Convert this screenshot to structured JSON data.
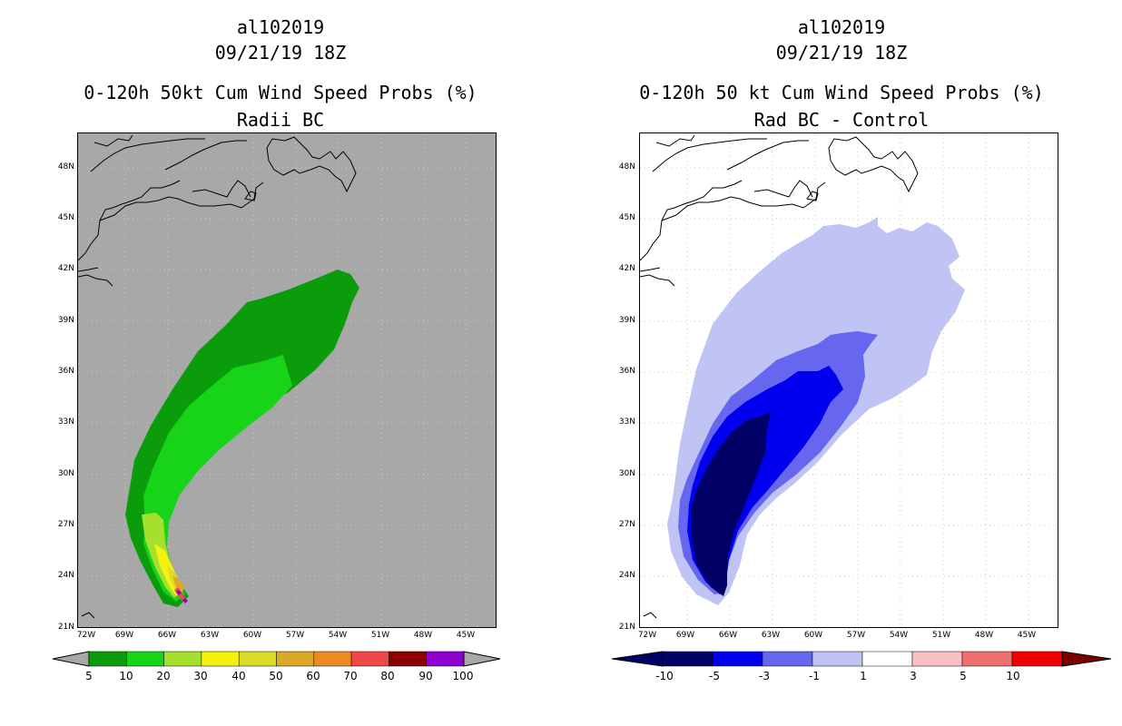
{
  "left": {
    "title_storm": "al102019",
    "title_time": "09/21/19 18Z",
    "title_product": "0-120h 50kt Cum Wind Speed Probs (%)",
    "title_sub": "Radii BC",
    "lat_labels": [
      "48N",
      "45N",
      "42N",
      "39N",
      "36N",
      "33N",
      "30N",
      "27N",
      "24N",
      "21N"
    ],
    "lon_labels": [
      "72W",
      "69W",
      "66W",
      "63W",
      "60W",
      "57W",
      "54W",
      "51W",
      "48W",
      "45W"
    ],
    "colorbar": {
      "labels": [
        "5",
        "10",
        "20",
        "30",
        "40",
        "50",
        "60",
        "70",
        "80",
        "90",
        "100"
      ],
      "colors": [
        "#0a9c0a",
        "#18d418",
        "#a6e02e",
        "#f2f20e",
        "#dcdc28",
        "#dca828",
        "#ee8a22",
        "#f04848",
        "#8c0000",
        "#8e00d0"
      ]
    }
  },
  "right": {
    "title_storm": "al102019",
    "title_time": "09/21/19 18Z",
    "title_product": "0-120h 50 kt Cum Wind Speed Probs (%)",
    "title_sub": "Rad BC - Control",
    "lat_labels": [
      "48N",
      "45N",
      "42N",
      "39N",
      "36N",
      "33N",
      "30N",
      "27N",
      "24N",
      "21N"
    ],
    "lon_labels": [
      "72W",
      "69W",
      "66W",
      "63W",
      "60W",
      "57W",
      "54W",
      "51W",
      "48W",
      "45W"
    ],
    "colorbar": {
      "labels": [
        "-10",
        "-5",
        "-3",
        "-1",
        "1",
        "3",
        "5",
        "10"
      ],
      "colors": [
        "#000066",
        "#0000ee",
        "#6666ee",
        "#c0c4f4",
        "#ffffff",
        "#f8c0c0",
        "#f07070",
        "#f00000"
      ],
      "end_low": "#000066",
      "end_high": "#7a0000"
    }
  },
  "colors": {
    "land_outline": "#000000",
    "left_background": "#a8a8a8",
    "grid": "#c8c8c8",
    "arrow_gray": "#a8a8a8"
  }
}
